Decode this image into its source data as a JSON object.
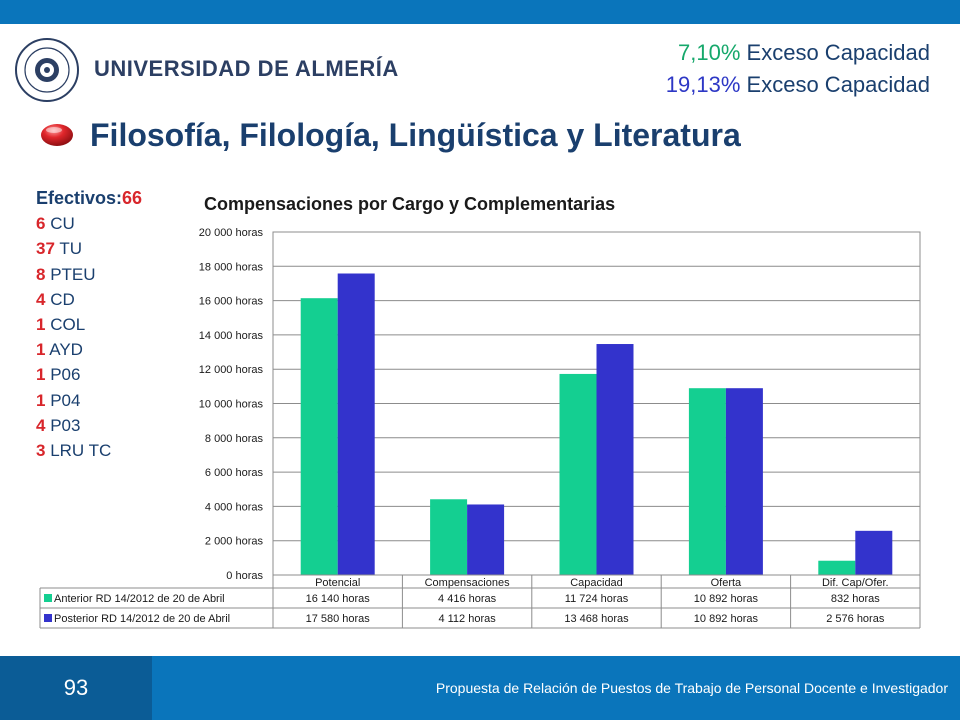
{
  "header": {
    "logo_text": "UNIVERSIDAD DE ALMERÍA",
    "exceso": [
      {
        "pct": "7,10%",
        "label": "Exceso Capacidad"
      },
      {
        "pct": "19,13%",
        "label": "Exceso Capacidad"
      }
    ],
    "main_title": "Filosofía, Filología, Lingüística y Literatura"
  },
  "efectivos": {
    "label": "Efectivos:",
    "total": "66",
    "items": [
      {
        "num": "6",
        "code": "CU"
      },
      {
        "num": "37",
        "code": "TU"
      },
      {
        "num": "8",
        "code": "PTEU"
      },
      {
        "num": "4",
        "code": "CD"
      },
      {
        "num": "1",
        "code": "COL"
      },
      {
        "num": "1",
        "code": "AYD"
      },
      {
        "num": "1",
        "code": "P06"
      },
      {
        "num": "1",
        "code": "P04"
      },
      {
        "num": "4",
        "code": "P03"
      },
      {
        "num": "3",
        "code": "LRU TC"
      }
    ]
  },
  "chart_data": {
    "type": "bar",
    "title": "Compensaciones por Cargo y Complementarias",
    "categories": [
      "Potencial",
      "Compensaciones",
      "Capacidad",
      "Oferta",
      "Dif. Cap/Ofer."
    ],
    "series": [
      {
        "name": "Anterior RD 14/2012 de 20 de Abril",
        "values": [
          16140,
          4416,
          11724,
          10892,
          832
        ],
        "labels": [
          "16 140 horas",
          "4 416 horas",
          "11 724 horas",
          "10 892 horas",
          "832 horas"
        ],
        "color": "#14cf91"
      },
      {
        "name": "Posterior RD 14/2012 de 20 de Abril",
        "values": [
          17580,
          4112,
          13468,
          10892,
          2576
        ],
        "labels": [
          "17 580 horas",
          "4 112 horas",
          "13 468 horas",
          "10 892 horas",
          "2 576 horas"
        ],
        "color": "#3333cc"
      }
    ],
    "ylim": [
      0,
      20000
    ],
    "yticks": [
      0,
      2000,
      4000,
      6000,
      8000,
      10000,
      12000,
      14000,
      16000,
      18000,
      20000
    ],
    "ytick_labels": [
      "0 horas",
      "2 000 horas",
      "4 000 horas",
      "6 000 horas",
      "8 000 horas",
      "10 000 horas",
      "12 000 horas",
      "14 000 horas",
      "16 000 horas",
      "18 000 horas",
      "20 000 horas"
    ],
    "grid": true,
    "legend": "data-table"
  },
  "footer": {
    "page_number": "93",
    "text": "Propuesta de Relación de Puestos de Trabajo de Personal Docente e Investigador"
  }
}
